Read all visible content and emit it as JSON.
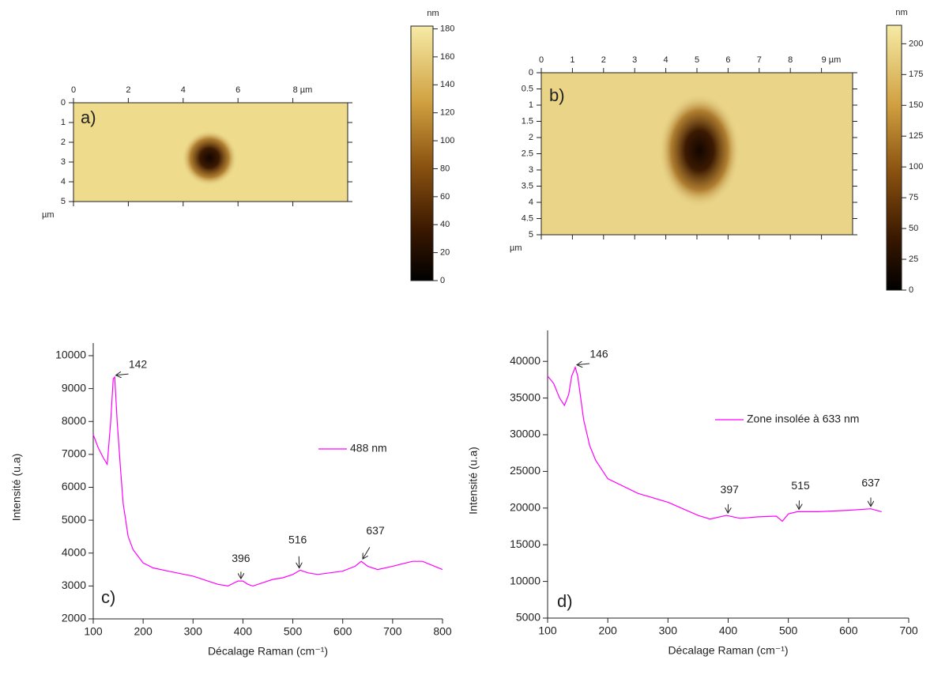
{
  "chart_data": [
    {
      "type": "afm",
      "panel": "a)",
      "xlim": [
        0,
        10
      ],
      "xticks": [
        0,
        2,
        4,
        6,
        {
          "value": 8,
          "label": "8 µm"
        }
      ],
      "ylim": [
        0,
        5
      ],
      "yticks": [
        0,
        1,
        2,
        3,
        4,
        5
      ],
      "ylabel": "µm",
      "colorbar": {
        "label": "nm",
        "clim": [
          0,
          182
        ],
        "ticks": [
          0,
          20,
          40,
          60,
          80,
          100,
          120,
          140,
          160,
          180
        ]
      }
    },
    {
      "type": "afm",
      "panel": "b)",
      "xlim": [
        0,
        10
      ],
      "xticks": [
        0,
        1,
        2,
        3,
        4,
        5,
        6,
        7,
        8,
        {
          "value": 9,
          "label": "9 µm"
        }
      ],
      "ylim": [
        0,
        5
      ],
      "yticks": [
        0,
        0.5,
        1,
        1.5,
        2,
        2.5,
        3,
        3.5,
        4,
        4.5,
        5
      ],
      "ylabel": "µm",
      "colorbar": {
        "label": "nm",
        "clim": [
          0,
          215
        ],
        "ticks": [
          0,
          25,
          50,
          75,
          100,
          125,
          150,
          175,
          200
        ]
      }
    },
    {
      "type": "line",
      "panel": "c)",
      "xlabel": "Décalage Raman (cm⁻¹)",
      "ylabel": "Intensité (u.a)",
      "xlim": [
        100,
        800
      ],
      "xticks": [
        100,
        200,
        300,
        400,
        500,
        600,
        700,
        800
      ],
      "ylim": [
        2000,
        10000
      ],
      "yticks": [
        2000,
        3000,
        4000,
        5000,
        6000,
        7000,
        8000,
        9000,
        10000
      ],
      "legend": "center right",
      "x": [
        100,
        110,
        120,
        128,
        135,
        140,
        143,
        148,
        155,
        160,
        170,
        180,
        190,
        200,
        220,
        250,
        300,
        350,
        370,
        390,
        400,
        410,
        420,
        440,
        460,
        480,
        500,
        515,
        530,
        550,
        600,
        625,
        637,
        650,
        670,
        700,
        740,
        760,
        800
      ],
      "series": [
        {
          "name": "488 nm",
          "color": "#ff00ff",
          "values": [
            7600,
            7200,
            6900,
            6700,
            8000,
            9300,
            9350,
            8000,
            6500,
            5500,
            4500,
            4100,
            3900,
            3700,
            3550,
            3450,
            3300,
            3050,
            3000,
            3150,
            3150,
            3050,
            3000,
            3100,
            3200,
            3250,
            3350,
            3480,
            3400,
            3350,
            3450,
            3600,
            3750,
            3600,
            3500,
            3600,
            3750,
            3750,
            3500
          ]
        }
      ],
      "annotations": [
        "142",
        "396",
        "516",
        "637"
      ]
    },
    {
      "type": "line",
      "panel": "d)",
      "xlabel": "Décalage Raman (cm⁻¹)",
      "ylabel": "Intensité (u.a)",
      "xlim": [
        100,
        700
      ],
      "xticks": [
        100,
        200,
        300,
        400,
        500,
        600,
        700
      ],
      "ylim": [
        5000,
        42500
      ],
      "yticks": [
        5000,
        10000,
        15000,
        20000,
        25000,
        30000,
        35000,
        40000
      ],
      "legend": "upper right",
      "x": [
        100,
        110,
        120,
        128,
        135,
        140,
        146,
        150,
        160,
        170,
        180,
        200,
        250,
        300,
        350,
        370,
        397,
        420,
        450,
        480,
        490,
        500,
        515,
        550,
        600,
        637,
        655
      ],
      "series": [
        {
          "name": "Zone insolée à 633 nm",
          "color": "#ff00ff",
          "values": [
            38000,
            37000,
            35000,
            34000,
            35500,
            38000,
            39200,
            38000,
            32000,
            28500,
            26500,
            24000,
            22000,
            20800,
            19000,
            18500,
            19000,
            18600,
            18800,
            18900,
            18200,
            19200,
            19500,
            19500,
            19700,
            19900,
            19500
          ]
        }
      ],
      "annotations": [
        "146",
        "397",
        "515",
        "637"
      ]
    }
  ]
}
